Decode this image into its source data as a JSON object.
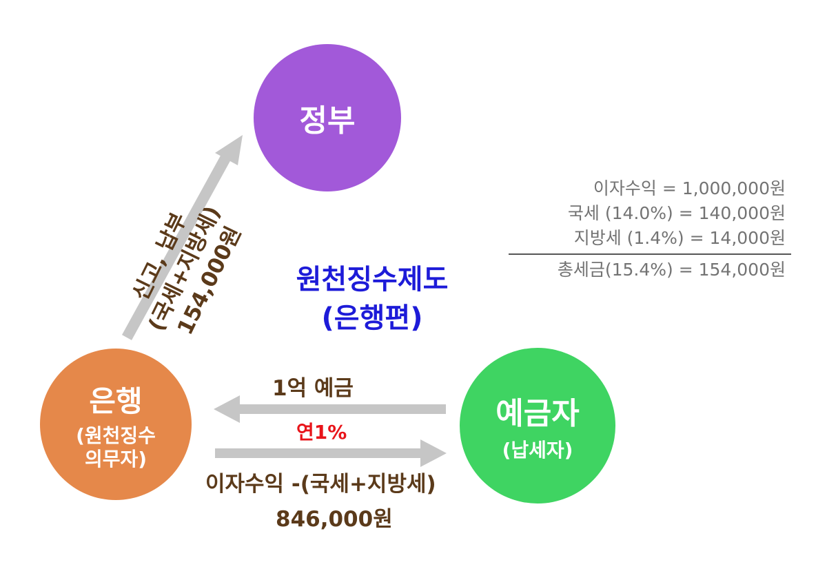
{
  "nodes": {
    "government": {
      "label": "정부",
      "color": "#a259d9"
    },
    "bank": {
      "label": "은행",
      "sub1": "(원천징수",
      "sub2": "의무자)",
      "color": "#e5884a"
    },
    "depositor": {
      "label": "예금자",
      "sub": "(납세자)",
      "color": "#3fd462"
    }
  },
  "title": {
    "line1": "원천징수제도",
    "line2": "(은행편)"
  },
  "edges": {
    "bank_to_government": {
      "line1": "신고, 납부",
      "line2": "(국세+지방세)",
      "line3": "154,000원"
    },
    "depositor_to_bank": {
      "label": "1억 예금"
    },
    "rate": {
      "label": "연1%"
    },
    "bank_to_depositor": {
      "line1": "이자수익 -(국세+지방세)",
      "line2": "846,000원"
    }
  },
  "calculation": {
    "rows": [
      {
        "text": "이자수익 = 1,000,000원"
      },
      {
        "text": "국세 (14.0%) = 140,000원"
      },
      {
        "text": "지방세 (1.4%) = 14,000원"
      }
    ],
    "total": "총세금(15.4%) = 154,000원"
  },
  "colors": {
    "arrow": "#c6c6c6",
    "text_brown": "#5b3a1a",
    "title_blue": "#1d1bd8",
    "rate_red": "#e8141a"
  }
}
